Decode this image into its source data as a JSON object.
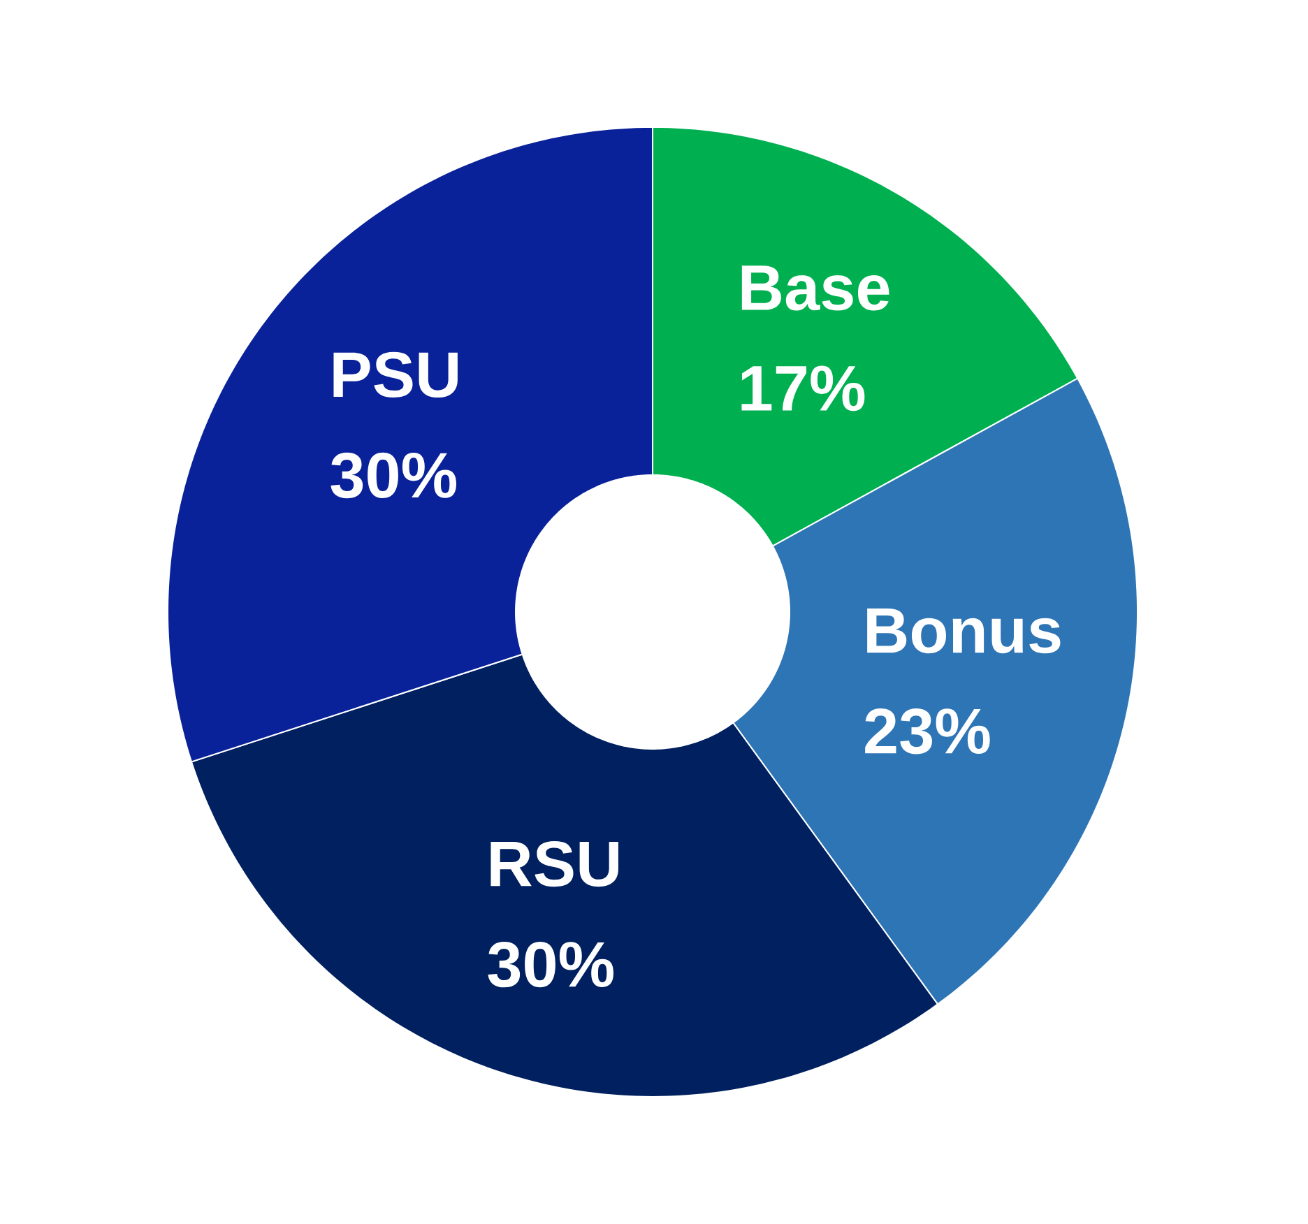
{
  "chart_data": {
    "type": "donut",
    "categories": [
      "Base",
      "Bonus",
      "RSU",
      "PSU"
    ],
    "values": [
      17,
      23,
      30,
      30
    ],
    "value_labels": [
      "17%",
      "23%",
      "30%",
      "30%"
    ],
    "colors": [
      "#00b050",
      "#2e75b6",
      "#002060",
      "#0a2299"
    ]
  }
}
